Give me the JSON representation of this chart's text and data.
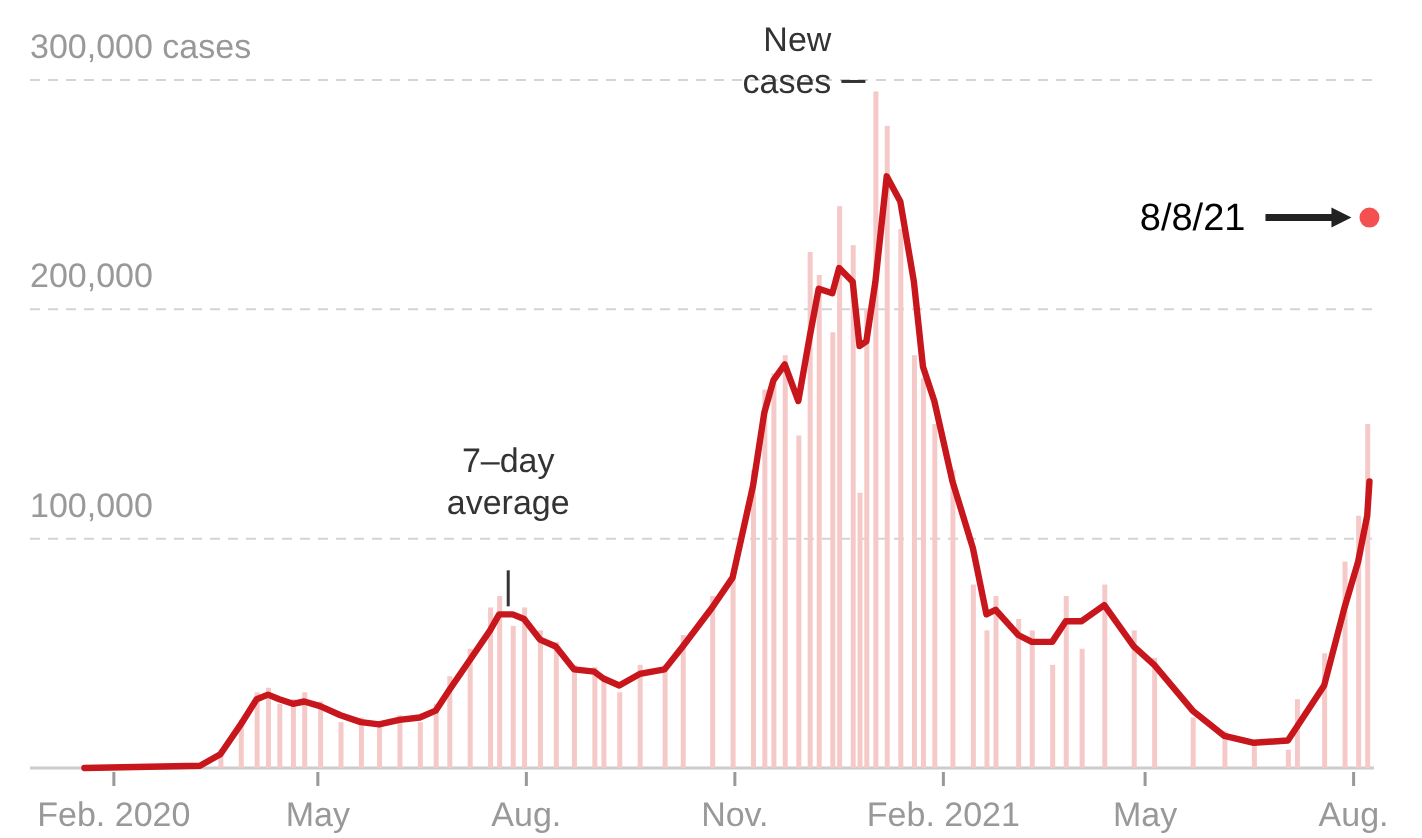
{
  "chart_data": {
    "type": "line",
    "xlim": [
      "2019-12-26",
      "2021-08-10"
    ],
    "ylim": [
      0,
      300000
    ],
    "xticks": [
      {
        "value": "2020-02-01",
        "label": "Feb. 2020"
      },
      {
        "value": "2020-05-01",
        "label": "May"
      },
      {
        "value": "2020-08-01",
        "label": "Aug."
      },
      {
        "value": "2020-11-01",
        "label": "Nov."
      },
      {
        "value": "2021-02-01",
        "label": "Feb. 2021"
      },
      {
        "value": "2021-05-01",
        "label": "May"
      },
      {
        "value": "2021-08-01",
        "label": "Aug."
      }
    ],
    "yticks": [
      {
        "value": 0,
        "label": null
      },
      {
        "value": 100000,
        "label": "100,000"
      },
      {
        "value": 200000,
        "label": "200,000"
      },
      {
        "value": 300000,
        "label": "300,000 cases"
      }
    ],
    "grid": "y",
    "series": [
      {
        "type": "bar",
        "color": "#f6c9c9",
        "x": [
          "2020-03-19",
          "2020-03-28",
          "2020-04-04",
          "2020-04-09",
          "2020-04-14",
          "2020-04-20",
          "2020-04-25",
          "2020-05-02",
          "2020-05-11",
          "2020-05-20",
          "2020-05-28",
          "2020-06-06",
          "2020-06-15",
          "2020-06-22",
          "2020-06-28",
          "2020-07-07",
          "2020-07-16",
          "2020-07-20",
          "2020-07-26",
          "2020-07-31",
          "2020-08-07",
          "2020-08-14",
          "2020-08-22",
          "2020-08-31",
          "2020-09-04",
          "2020-09-11",
          "2020-09-20",
          "2020-10-01",
          "2020-10-09",
          "2020-10-22",
          "2020-10-31",
          "2020-11-09",
          "2020-11-14",
          "2020-11-18",
          "2020-11-23",
          "2020-11-29",
          "2020-12-04",
          "2020-12-08",
          "2020-12-14",
          "2020-12-17",
          "2020-12-23",
          "2020-12-26",
          "2020-12-29",
          "2021-01-02",
          "2021-01-07",
          "2021-01-13",
          "2021-01-19",
          "2021-01-23",
          "2021-01-28",
          "2021-02-05",
          "2021-02-14",
          "2021-02-20",
          "2021-02-24",
          "2021-03-06",
          "2021-03-12",
          "2021-03-21",
          "2021-03-27",
          "2021-04-03",
          "2021-04-13",
          "2021-04-26",
          "2021-05-05",
          "2021-05-22",
          "2021-06-05",
          "2021-06-18",
          "2021-07-03",
          "2021-07-07",
          "2021-07-19",
          "2021-07-28",
          "2021-08-03",
          "2021-08-07"
        ],
        "values": [
          8000,
          21000,
          33000,
          35000,
          28000,
          30000,
          33000,
          29000,
          20000,
          22000,
          18000,
          23000,
          20000,
          28000,
          40000,
          52000,
          70000,
          75000,
          62000,
          70000,
          60000,
          55000,
          45000,
          44000,
          40000,
          33000,
          45000,
          45000,
          58000,
          75000,
          85000,
          130000,
          165000,
          172000,
          180000,
          145000,
          225000,
          215000,
          190000,
          245000,
          228000,
          120000,
          200000,
          295000,
          280000,
          235000,
          180000,
          170000,
          150000,
          130000,
          80000,
          60000,
          75000,
          65000,
          60000,
          45000,
          75000,
          52000,
          80000,
          60000,
          48000,
          22000,
          16000,
          12000,
          8000,
          30000,
          50000,
          90000,
          110000,
          150000
        ]
      },
      {
        "color": "#c8161d",
        "marker": "none",
        "line_style": "solid",
        "x": [
          "2020-01-19",
          "2020-03-10",
          "2020-03-19",
          "2020-03-28",
          "2020-04-04",
          "2020-04-09",
          "2020-04-14",
          "2020-04-20",
          "2020-04-25",
          "2020-05-02",
          "2020-05-11",
          "2020-05-20",
          "2020-05-28",
          "2020-06-06",
          "2020-06-15",
          "2020-06-22",
          "2020-06-28",
          "2020-07-07",
          "2020-07-16",
          "2020-07-20",
          "2020-07-26",
          "2020-07-31",
          "2020-08-07",
          "2020-08-14",
          "2020-08-22",
          "2020-08-31",
          "2020-09-04",
          "2020-09-11",
          "2020-09-20",
          "2020-10-01",
          "2020-10-09",
          "2020-10-22",
          "2020-10-31",
          "2020-11-09",
          "2020-11-14",
          "2020-11-18",
          "2020-11-23",
          "2020-11-29",
          "2020-12-04",
          "2020-12-08",
          "2020-12-14",
          "2020-12-17",
          "2020-12-23",
          "2020-12-26",
          "2020-12-29",
          "2021-01-02",
          "2021-01-07",
          "2021-01-13",
          "2021-01-19",
          "2021-01-23",
          "2021-01-28",
          "2021-02-05",
          "2021-02-14",
          "2021-02-20",
          "2021-02-24",
          "2021-03-06",
          "2021-03-12",
          "2021-03-21",
          "2021-03-27",
          "2021-04-03",
          "2021-04-13",
          "2021-04-26",
          "2021-05-05",
          "2021-05-22",
          "2021-06-05",
          "2021-06-18",
          "2021-07-03",
          "2021-07-07",
          "2021-07-19",
          "2021-07-28",
          "2021-08-03",
          "2021-08-07",
          "2021-08-08"
        ],
        "values": [
          0,
          1000,
          6000,
          19000,
          30000,
          32000,
          30000,
          28000,
          29000,
          27000,
          23000,
          20000,
          19000,
          21000,
          22000,
          25000,
          34000,
          47000,
          60000,
          67000,
          67000,
          65000,
          56000,
          53000,
          43000,
          42000,
          39000,
          36000,
          41000,
          43000,
          53000,
          70000,
          83000,
          123000,
          155000,
          169000,
          176000,
          160000,
          188000,
          209000,
          207000,
          218000,
          212000,
          184000,
          186000,
          212000,
          258000,
          247000,
          212000,
          175000,
          160000,
          125000,
          96000,
          67000,
          69000,
          58000,
          55000,
          55000,
          64000,
          64000,
          71000,
          53000,
          45000,
          25000,
          14000,
          11000,
          12000,
          18000,
          36000,
          70000,
          90000,
          110000,
          125000
        ]
      },
      {
        "type": "scatter",
        "color": "#f55050",
        "marker": "circle",
        "x": [
          "2021-08-08"
        ],
        "values": [
          240000
        ]
      }
    ],
    "annotations": [
      {
        "text": "New cases",
        "x": "2021-01-02",
        "y": 295000
      },
      {
        "text": "7–day average",
        "x": "2020-07-24",
        "y": 67000
      },
      "8/8/21"
    ]
  }
}
